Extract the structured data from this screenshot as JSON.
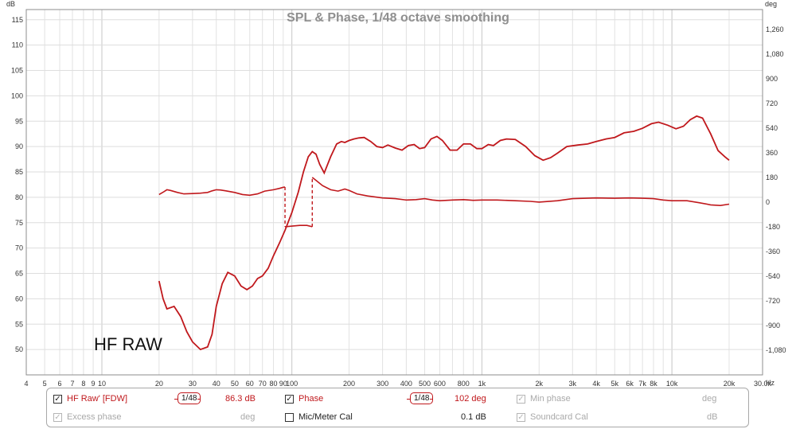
{
  "chart_data": {
    "type": "line",
    "title": "SPL & Phase, 1/48 octave smoothing",
    "ylabel_left": "dB",
    "ylabel_right": "deg",
    "xunit": "Hz",
    "xscale": "log",
    "xlim": [
      4,
      30000
    ],
    "ylim_left": [
      45,
      117
    ],
    "ylim_right": [
      -1260,
      1404
    ],
    "grid": true,
    "color": "#c0181c",
    "x_ticks": [
      {
        "v": 4,
        "label": "4"
      },
      {
        "v": 5,
        "label": "5"
      },
      {
        "v": 6,
        "label": "6"
      },
      {
        "v": 7,
        "label": "7"
      },
      {
        "v": 8,
        "label": "8"
      },
      {
        "v": 9,
        "label": "9"
      },
      {
        "v": 10,
        "label": "10"
      },
      {
        "v": 20,
        "label": "20"
      },
      {
        "v": 30,
        "label": "30"
      },
      {
        "v": 40,
        "label": "40"
      },
      {
        "v": 50,
        "label": "50"
      },
      {
        "v": 60,
        "label": "60"
      },
      {
        "v": 70,
        "label": "70"
      },
      {
        "v": 80,
        "label": "80"
      },
      {
        "v": 90,
        "label": "90"
      },
      {
        "v": 100,
        "label": "100"
      },
      {
        "v": 200,
        "label": "200"
      },
      {
        "v": 300,
        "label": "300"
      },
      {
        "v": 400,
        "label": "400"
      },
      {
        "v": 500,
        "label": "500"
      },
      {
        "v": 600,
        "label": "600"
      },
      {
        "v": 800,
        "label": "800"
      },
      {
        "v": 1000,
        "label": "1k"
      },
      {
        "v": 2000,
        "label": "2k"
      },
      {
        "v": 3000,
        "label": "3k"
      },
      {
        "v": 4000,
        "label": "4k"
      },
      {
        "v": 5000,
        "label": "5k"
      },
      {
        "v": 6000,
        "label": "6k"
      },
      {
        "v": 7000,
        "label": "7k"
      },
      {
        "v": 8000,
        "label": "8k"
      },
      {
        "v": 10000,
        "label": "10k"
      },
      {
        "v": 20000,
        "label": "20k"
      },
      {
        "v": 30000,
        "label": "30.0k"
      }
    ],
    "y_ticks_left": [
      {
        "v": 50,
        "label": "50"
      },
      {
        "v": 55,
        "label": "55"
      },
      {
        "v": 60,
        "label": "60"
      },
      {
        "v": 65,
        "label": "65"
      },
      {
        "v": 70,
        "label": "70"
      },
      {
        "v": 75,
        "label": "75"
      },
      {
        "v": 80,
        "label": "80"
      },
      {
        "v": 85,
        "label": "85"
      },
      {
        "v": 90,
        "label": "90"
      },
      {
        "v": 95,
        "label": "95"
      },
      {
        "v": 100,
        "label": "100"
      },
      {
        "v": 105,
        "label": "105"
      },
      {
        "v": 110,
        "label": "110"
      },
      {
        "v": 115,
        "label": "115"
      }
    ],
    "y_ticks_right": [
      {
        "v": -1080,
        "label": "-1,080"
      },
      {
        "v": -900,
        "label": "-900"
      },
      {
        "v": -720,
        "label": "-720"
      },
      {
        "v": -540,
        "label": "-540"
      },
      {
        "v": -360,
        "label": "-360"
      },
      {
        "v": -180,
        "label": "-180"
      },
      {
        "v": 0,
        "label": "0"
      },
      {
        "v": 180,
        "label": "180"
      },
      {
        "v": 360,
        "label": "360"
      },
      {
        "v": 540,
        "label": "540"
      },
      {
        "v": 720,
        "label": "720"
      },
      {
        "v": 900,
        "label": "900"
      },
      {
        "v": 1080,
        "label": "1,080"
      },
      {
        "v": 1260,
        "label": "1,260"
      }
    ],
    "annotation": "HF RAW",
    "series": [
      {
        "name": "HF Raw' [FDW]",
        "axis": "left",
        "x": [
          20,
          21,
          22,
          24,
          26,
          28,
          30,
          33,
          36,
          38,
          40,
          43,
          46,
          50,
          54,
          58,
          62,
          66,
          70,
          75,
          80,
          86,
          92,
          100,
          108,
          115,
          122,
          128,
          134,
          140,
          148,
          160,
          172,
          182,
          190,
          200,
          212,
          225,
          240,
          260,
          280,
          300,
          320,
          350,
          380,
          410,
          440,
          470,
          500,
          540,
          580,
          620,
          680,
          740,
          800,
          870,
          940,
          1000,
          1080,
          1150,
          1250,
          1350,
          1500,
          1700,
          1900,
          2100,
          2300,
          2500,
          2800,
          3200,
          3600,
          4000,
          4500,
          5000,
          5600,
          6300,
          7000,
          7800,
          8500,
          9500,
          10500,
          11500,
          12500,
          13500,
          14500,
          16000,
          17500,
          19000,
          20000
        ],
        "y": [
          63.5,
          60,
          58,
          58.5,
          56.5,
          53.5,
          51.5,
          50,
          50.5,
          53,
          58.5,
          63,
          65.2,
          64.5,
          62.5,
          61.8,
          62.5,
          64,
          64.5,
          66,
          68.5,
          71,
          73.5,
          77,
          81,
          85,
          88,
          89,
          88.5,
          86.5,
          84.8,
          88,
          90.5,
          91,
          90.8,
          91.2,
          91.5,
          91.7,
          91.8,
          91,
          90,
          89.8,
          90.3,
          89.7,
          89.3,
          90.2,
          90.4,
          89.6,
          89.8,
          91.5,
          92,
          91.2,
          89.3,
          89.3,
          90.5,
          90.5,
          89.6,
          89.6,
          90.4,
          90.2,
          91.2,
          91.5,
          91.4,
          90,
          88.2,
          87.3,
          87.8,
          88.7,
          90,
          90.3,
          90.5,
          91,
          91.5,
          91.8,
          92.7,
          93,
          93.6,
          94.5,
          94.8,
          94.2,
          93.5,
          94,
          95.3,
          96,
          95.6,
          92.5,
          89.2,
          88,
          87.3
        ]
      },
      {
        "name": "Phase",
        "axis": "right",
        "x": [
          20,
          21,
          22,
          23,
          25,
          27,
          30,
          33,
          36,
          38,
          40,
          42,
          45,
          50,
          55,
          60,
          66,
          72,
          80,
          86,
          90,
          92,
          92.01,
          100,
          110,
          120,
          128,
          128.01,
          135,
          145,
          160,
          175,
          190,
          200,
          220,
          250,
          300,
          350,
          400,
          450,
          500,
          550,
          600,
          700,
          800,
          900,
          1000,
          1200,
          1500,
          1800,
          2000,
          2500,
          3000,
          4000,
          5000,
          6000,
          7000,
          8000,
          9000,
          10000,
          12000,
          14000,
          16000,
          18000,
          20000
        ],
        "y": [
          55,
          72,
          90,
          85,
          70,
          60,
          62,
          65,
          70,
          82,
          90,
          88,
          82,
          70,
          55,
          50,
          60,
          80,
          90,
          100,
          108,
          110,
          -180,
          -175,
          -170,
          -170,
          -180,
          180,
          155,
          120,
          90,
          80,
          95,
          85,
          60,
          45,
          30,
          25,
          15,
          18,
          25,
          15,
          10,
          15,
          18,
          13,
          15,
          15,
          10,
          5,
          0,
          10,
          25,
          30,
          28,
          30,
          28,
          25,
          15,
          10,
          10,
          -5,
          -20,
          -25,
          -15
        ]
      }
    ]
  },
  "legend": {
    "row1": {
      "hf_raw": {
        "checked": "✓",
        "label": "HF Raw' [FDW]",
        "smoothing": "1/48",
        "value": "86.3 dB"
      },
      "phase": {
        "checked": "✓",
        "label": "Phase",
        "smoothing": "1/48",
        "value": "102 deg"
      },
      "min_phase": {
        "checked": "✓",
        "label": "Min phase",
        "value": "deg"
      }
    },
    "row2": {
      "excess_phase": {
        "checked": "✓",
        "label": "Excess phase",
        "value": "deg"
      },
      "mic_cal": {
        "checked": "",
        "label": "Mic/Meter Cal",
        "value": "0.1 dB"
      },
      "soundcard_cal": {
        "checked": "✓",
        "label": "Soundcard Cal",
        "value": "dB"
      }
    }
  }
}
